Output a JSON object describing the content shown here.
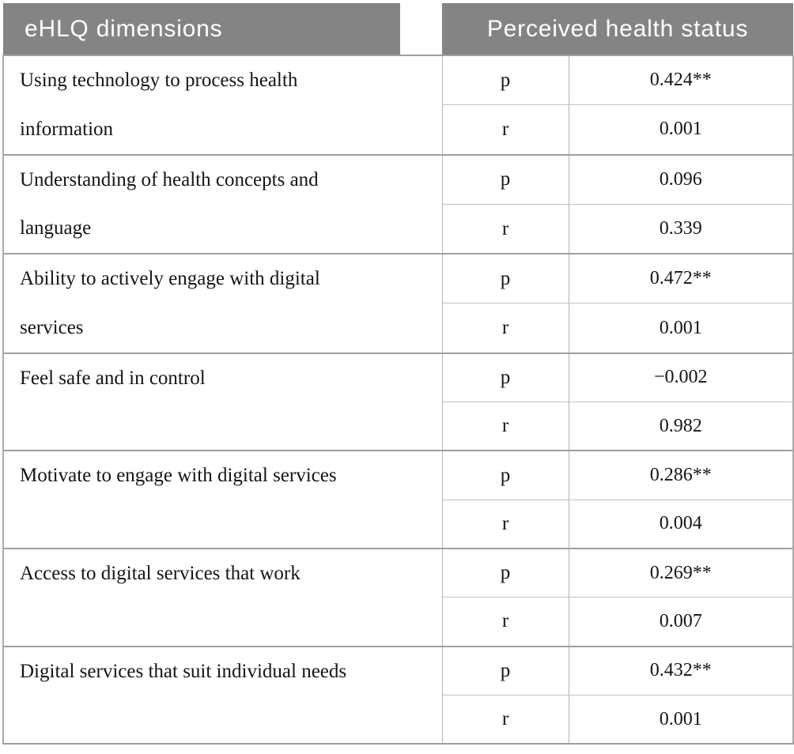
{
  "table": {
    "header": {
      "dimensions_label": "eHLQ dimensions",
      "outcome_label": "Perceived health status"
    },
    "stat_labels": {
      "row1": "p",
      "row2": "r"
    },
    "colors": {
      "header_bg": "#848484",
      "header_text": "#ffffff",
      "border_light": "#c2c2c2",
      "border_mid": "#b3b3b3",
      "border_dark": "#9f9f9f",
      "body_text": "#151515",
      "page_bg": "#ffffff"
    },
    "rows": [
      {
        "dimension": "Using technology to process health information",
        "lines": [
          "Using technology to process health",
          "information"
        ],
        "values": {
          "p": "0.424**",
          "r": "0.001"
        }
      },
      {
        "dimension": "Understanding of health concepts and language",
        "lines": [
          "Understanding of health concepts and",
          "language"
        ],
        "values": {
          "p": "0.096",
          "r": "0.339"
        }
      },
      {
        "dimension": "Ability to actively engage with digital services",
        "lines": [
          "Ability to actively engage with digital",
          "services"
        ],
        "values": {
          "p": "0.472**",
          "r": "0.001"
        }
      },
      {
        "dimension": "Feel safe and in control",
        "lines": [
          "Feel safe and in control"
        ],
        "values": {
          "p": "−0.002",
          "r": "0.982"
        }
      },
      {
        "dimension": "Motivate to engage with digital services",
        "lines": [
          "Motivate to engage with digital services"
        ],
        "values": {
          "p": "0.286**",
          "r": "0.004"
        }
      },
      {
        "dimension": "Access to digital services that work",
        "lines": [
          "Access to digital services that work"
        ],
        "values": {
          "p": "0.269**",
          "r": "0.007"
        }
      },
      {
        "dimension": "Digital services that suit individual needs",
        "lines": [
          "Digital services that suit individual needs"
        ],
        "values": {
          "p": "0.432**",
          "r": "0.001"
        }
      }
    ]
  }
}
